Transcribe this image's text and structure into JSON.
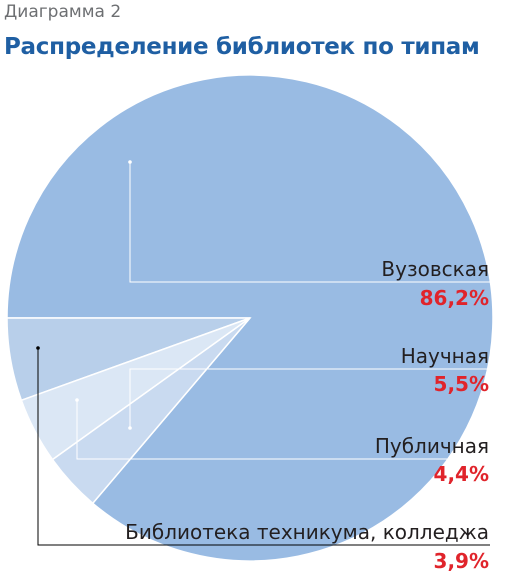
{
  "header": {
    "caption": "Диаграмма 2",
    "title": "Распределение библиотек по типам"
  },
  "colors": {
    "slice_main": "#99bbe3",
    "slice_2": "#b8cfea",
    "slice_3": "#dbe7f5",
    "slice_4": "#c9daf0",
    "value_text": "#e0242b",
    "leader_light": "#ffffff",
    "leader_dark": "#000000",
    "title_text": "#1f5fa3"
  },
  "chart_data": {
    "type": "pie",
    "title": "Распределение библиотек по типам",
    "slices": [
      {
        "label": "Вузовская",
        "value": 86.2,
        "display": "86,2%"
      },
      {
        "label": "Научная",
        "value": 5.5,
        "display": "5,5%"
      },
      {
        "label": "Публичная",
        "value": 4.4,
        "display": "4,4%"
      },
      {
        "label": "Библиотека техникума, колледжа",
        "value": 3.9,
        "display": "3,9%"
      }
    ]
  }
}
